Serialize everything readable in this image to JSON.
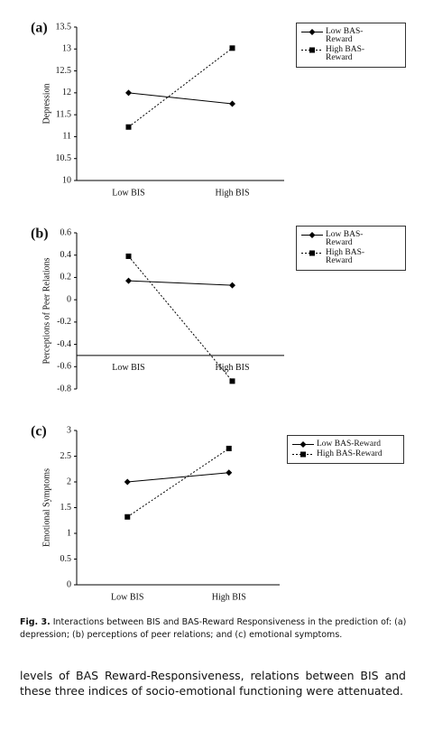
{
  "chart_data": [
    {
      "type": "line",
      "panel": "(a)",
      "y_label": "Depression",
      "categories": [
        "Low BIS",
        "High BIS"
      ],
      "series": [
        {
          "name": "Low BAS-Reward",
          "color": "#000000",
          "marker": "diamond",
          "dash": false,
          "values": [
            12.0,
            11.75
          ]
        },
        {
          "name": "High BAS-Reward",
          "color": "#000000",
          "marker": "square",
          "dash": true,
          "values": [
            11.22,
            13.02
          ]
        }
      ],
      "ylim": [
        10,
        13.5
      ],
      "yticks": [
        10,
        10.5,
        11,
        11.5,
        12,
        12.5,
        13,
        13.5
      ],
      "x_axis_at": 10
    },
    {
      "type": "line",
      "panel": "(b)",
      "y_label": "Perceptions of Peer Relations",
      "categories": [
        "Low BIS",
        "High BIS"
      ],
      "series": [
        {
          "name": "Low BAS-Reward",
          "color": "#000000",
          "marker": "diamond",
          "dash": false,
          "values": [
            0.17,
            0.13
          ]
        },
        {
          "name": "High BAS-Reward",
          "color": "#000000",
          "marker": "square",
          "dash": true,
          "values": [
            0.39,
            -0.73
          ]
        }
      ],
      "ylim": [
        -0.8,
        0.6
      ],
      "yticks": [
        -0.8,
        -0.6,
        -0.4,
        -0.2,
        0,
        0.2,
        0.4,
        0.6
      ],
      "x_axis_at": -0.5
    },
    {
      "type": "line",
      "panel": "(c)",
      "y_label": "Emotional Symptoms",
      "categories": [
        "Low BIS",
        "High BIS"
      ],
      "series": [
        {
          "name": "Low BAS-Reward",
          "color": "#000000",
          "marker": "diamond",
          "dash": false,
          "values": [
            2.0,
            2.18
          ]
        },
        {
          "name": "High BAS-Reward",
          "color": "#000000",
          "marker": "square",
          "dash": true,
          "values": [
            1.32,
            2.65
          ]
        }
      ],
      "ylim": [
        0,
        3
      ],
      "yticks": [
        0,
        0.5,
        1,
        1.5,
        2,
        2.5,
        3
      ],
      "x_axis_at": 0
    }
  ],
  "caption": {
    "label": "Fig. 3.",
    "text": "Interactions between BIS and BAS-Reward Responsiveness in the prediction of: (a) depression; (b) perceptions of peer relations; and (c) emotional symptoms."
  },
  "body_text": "levels of BAS Reward-Responsiveness, relations between BIS and these three indices of socio-emotional functioning were attenuated."
}
